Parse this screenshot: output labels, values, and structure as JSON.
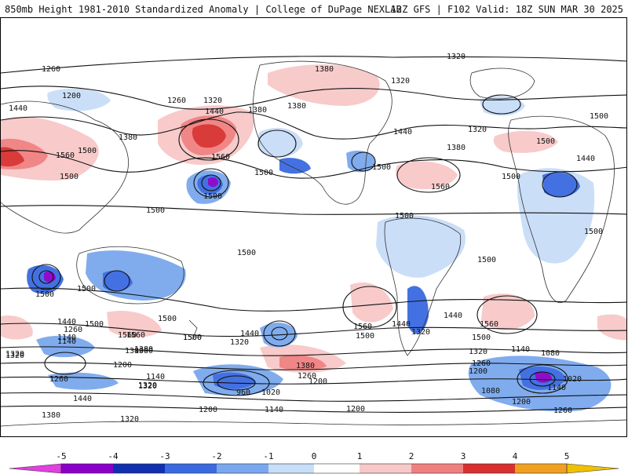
{
  "header": {
    "left": "850mb Height 1981-2010 Standardized Anomaly | College of DuPage NEXLAB",
    "right": "12Z GFS | F102 Valid: 18Z SUN MAR 30 2025"
  },
  "colorbar": {
    "ticks": [
      "-5",
      "-4",
      "-3",
      "-2",
      "-1",
      "0",
      "1",
      "2",
      "3",
      "4",
      "5"
    ],
    "colors": [
      "#e040e0",
      "#8a00c8",
      "#1030b0",
      "#3a6ae0",
      "#7aa8ee",
      "#c8ddf8",
      "#ffffff",
      "#ffffff",
      "#f8c8c8",
      "#f08080",
      "#d83030",
      "#b00010",
      "#f0a020"
    ]
  },
  "contour_labels": [
    "1320",
    "1380",
    "1320",
    "1260",
    "1200",
    "1260",
    "1320",
    "1440",
    "1380",
    "1380",
    "1440",
    "1500",
    "1380",
    "1560",
    "1500",
    "1560",
    "1500",
    "1500",
    "1440",
    "1500",
    "1500",
    "1560",
    "1500",
    "1380",
    "1320",
    "1500",
    "1440",
    "1500",
    "1500",
    "1500",
    "1500",
    "1500",
    "1500",
    "1500",
    "1500",
    "1500",
    "1500",
    "1440",
    "1560",
    "1560",
    "1440",
    "1320",
    "1320",
    "1440",
    "1500",
    "1560",
    "1500",
    "1380",
    "1320",
    "1260",
    "1200",
    "1140",
    "1080",
    "1020",
    "1140",
    "1080",
    "1200",
    "1260",
    "1140",
    "1320",
    "1380",
    "1500",
    "1560",
    "1440",
    "1380",
    "1320",
    "1260",
    "1140",
    "1200",
    "1140",
    "1260",
    "1320",
    "1380",
    "960",
    "1020",
    "1200",
    "1260",
    "1200",
    "1140",
    "1440",
    "1380",
    "1320",
    "1320",
    "1200"
  ]
}
